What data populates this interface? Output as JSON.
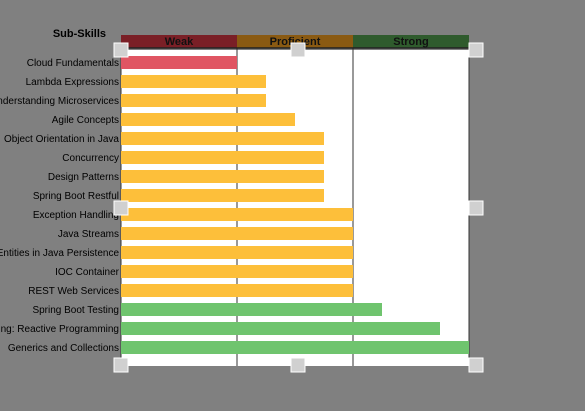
{
  "chart_data": {
    "type": "bar",
    "orientation": "horizontal",
    "title": "Sub-Skills",
    "bands": [
      {
        "label": "Weak",
        "color": "#7a1f26"
      },
      {
        "label": "Proficient",
        "color": "#8a5a12"
      },
      {
        "label": "Strong",
        "color": "#2f5b2d"
      }
    ],
    "categories": [
      "Cloud Fundamentals",
      "Lambda Expressions",
      "Understanding Microservices",
      "Agile Concepts",
      "Object Orientation in Java",
      "Concurrency",
      "Design Patterns",
      "Spring Boot Restful",
      "Exception Handling",
      "Java Streams",
      "Entities in Java Persistence",
      "IOC Container",
      "REST Web Services",
      "Spring Boot Testing",
      "Testing: Reactive Programming",
      "Generics and Collections"
    ],
    "values": [
      1,
      1.25,
      1.25,
      1.5,
      1.75,
      1.75,
      1.75,
      1.75,
      2,
      2,
      2,
      2,
      2,
      2.25,
      2.75,
      3
    ],
    "levels": [
      "weak",
      "proficient",
      "proficient",
      "proficient",
      "proficient",
      "proficient",
      "proficient",
      "proficient",
      "proficient",
      "proficient",
      "proficient",
      "proficient",
      "proficient",
      "strong",
      "strong",
      "strong"
    ],
    "xlim": [
      0,
      3
    ],
    "colors": {
      "weak": "#e05563",
      "proficient": "#fdbf3a",
      "strong": "#6fc46e"
    },
    "grid": true
  }
}
